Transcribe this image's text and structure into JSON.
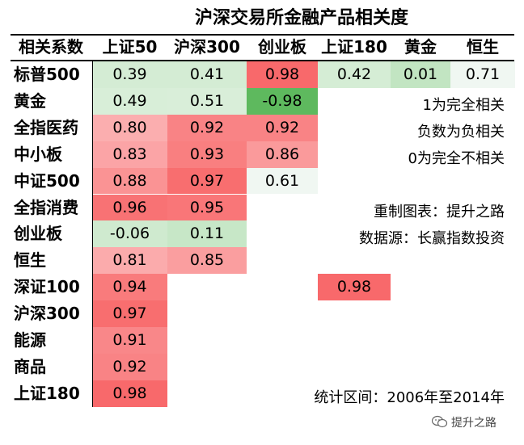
{
  "chart_data": {
    "type": "heatmap",
    "title": "沪深交易所金融产品相关度",
    "corner_label": "相关系数",
    "columns": [
      "上证50",
      "沪深300",
      "创业板",
      "上证180",
      "黄金",
      "恒生"
    ],
    "rows": [
      "标普500",
      "黄金",
      "全指医药",
      "中小板",
      "中证500",
      "全指消费",
      "创业板",
      "恒生",
      "深证100",
      "沪深300",
      "能源",
      "商品",
      "上证180"
    ],
    "values": [
      [
        0.39,
        0.41,
        0.98,
        0.42,
        0.01,
        0.71
      ],
      [
        0.49,
        0.51,
        -0.98,
        null,
        null,
        null
      ],
      [
        0.8,
        0.92,
        0.92,
        null,
        null,
        null
      ],
      [
        0.83,
        0.93,
        0.86,
        null,
        null,
        null
      ],
      [
        0.88,
        0.97,
        0.61,
        null,
        null,
        null
      ],
      [
        0.96,
        0.95,
        null,
        null,
        null,
        null
      ],
      [
        -0.06,
        0.11,
        null,
        null,
        null,
        null
      ],
      [
        0.81,
        0.85,
        null,
        null,
        null,
        null
      ],
      [
        0.94,
        null,
        null,
        0.98,
        null,
        null
      ],
      [
        0.97,
        null,
        null,
        null,
        null,
        null
      ],
      [
        0.91,
        null,
        null,
        null,
        null,
        null
      ],
      [
        0.92,
        null,
        null,
        null,
        null,
        null
      ],
      [
        0.98,
        null,
        null,
        null,
        null,
        null
      ]
    ],
    "labels": [
      [
        "0.39",
        "0.41",
        "0.98",
        "0.42",
        "0.01",
        "0.71"
      ],
      [
        "0.49",
        "0.51",
        "-0.98",
        "",
        "",
        ""
      ],
      [
        "0.80",
        "0.92",
        "0.92",
        "",
        "",
        ""
      ],
      [
        "0.83",
        "0.93",
        "0.86",
        "",
        "",
        ""
      ],
      [
        "0.88",
        "0.97",
        "0.61",
        "",
        "",
        ""
      ],
      [
        "0.96",
        "0.95",
        "",
        "",
        "",
        ""
      ],
      [
        "-0.06",
        "0.11",
        "",
        "",
        "",
        ""
      ],
      [
        "0.81",
        "0.85",
        "",
        "",
        "",
        ""
      ],
      [
        "0.94",
        "",
        "",
        "0.98",
        "",
        ""
      ],
      [
        "0.97",
        "",
        "",
        "",
        "",
        ""
      ],
      [
        "0.91",
        "",
        "",
        "",
        "",
        ""
      ],
      [
        "0.92",
        "",
        "",
        "",
        "",
        ""
      ],
      [
        "0.98",
        "",
        "",
        "",
        "",
        ""
      ]
    ],
    "color_scale": {
      "negative": "#5cb85c",
      "neutral": "#ffffff",
      "positive": "#f8696b"
    }
  },
  "notes": {
    "legend1": "1为完全相关",
    "legend2": "负数为负相关",
    "legend3": "0为完全不相关",
    "credit": "重制图表：提升之路",
    "source": "数据源：长赢指数投资",
    "period": "统计区间：2006年至2014年"
  },
  "watermark": {
    "text": "提升之路",
    "icon": "wechat-icon"
  }
}
